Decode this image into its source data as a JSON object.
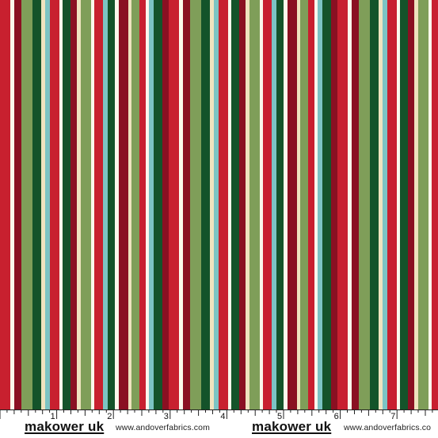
{
  "fabric": {
    "palette": {
      "red": "#c8202f",
      "burgundy": "#8a1022",
      "dark-green": "#14532a",
      "sage-green": "#7f9e59",
      "aqua": "#7cc4c4",
      "cream": "#efe3bf",
      "white": "#fbf8ec"
    },
    "stripe_sequence": [
      "red",
      "white",
      "burgundy",
      "sage-green",
      "dark-green",
      "cream",
      "aqua",
      "red",
      "white",
      "dark-green",
      "burgundy",
      "cream",
      "sage-green",
      "white",
      "red",
      "aqua",
      "dark-green",
      "white",
      "burgundy",
      "cream",
      "sage-green",
      "red",
      "white",
      "aqua",
      "dark-green",
      "burgundy"
    ]
  },
  "ruler": {
    "numbers": [
      "1",
      "2",
      "3",
      "4",
      "5",
      "6",
      "7"
    ]
  },
  "footer": {
    "brand_left": "makower uk",
    "site_left": "www.andoverfabrics.com",
    "brand_right": "makower uk",
    "site_right": "www.andoverfabrics.co"
  }
}
